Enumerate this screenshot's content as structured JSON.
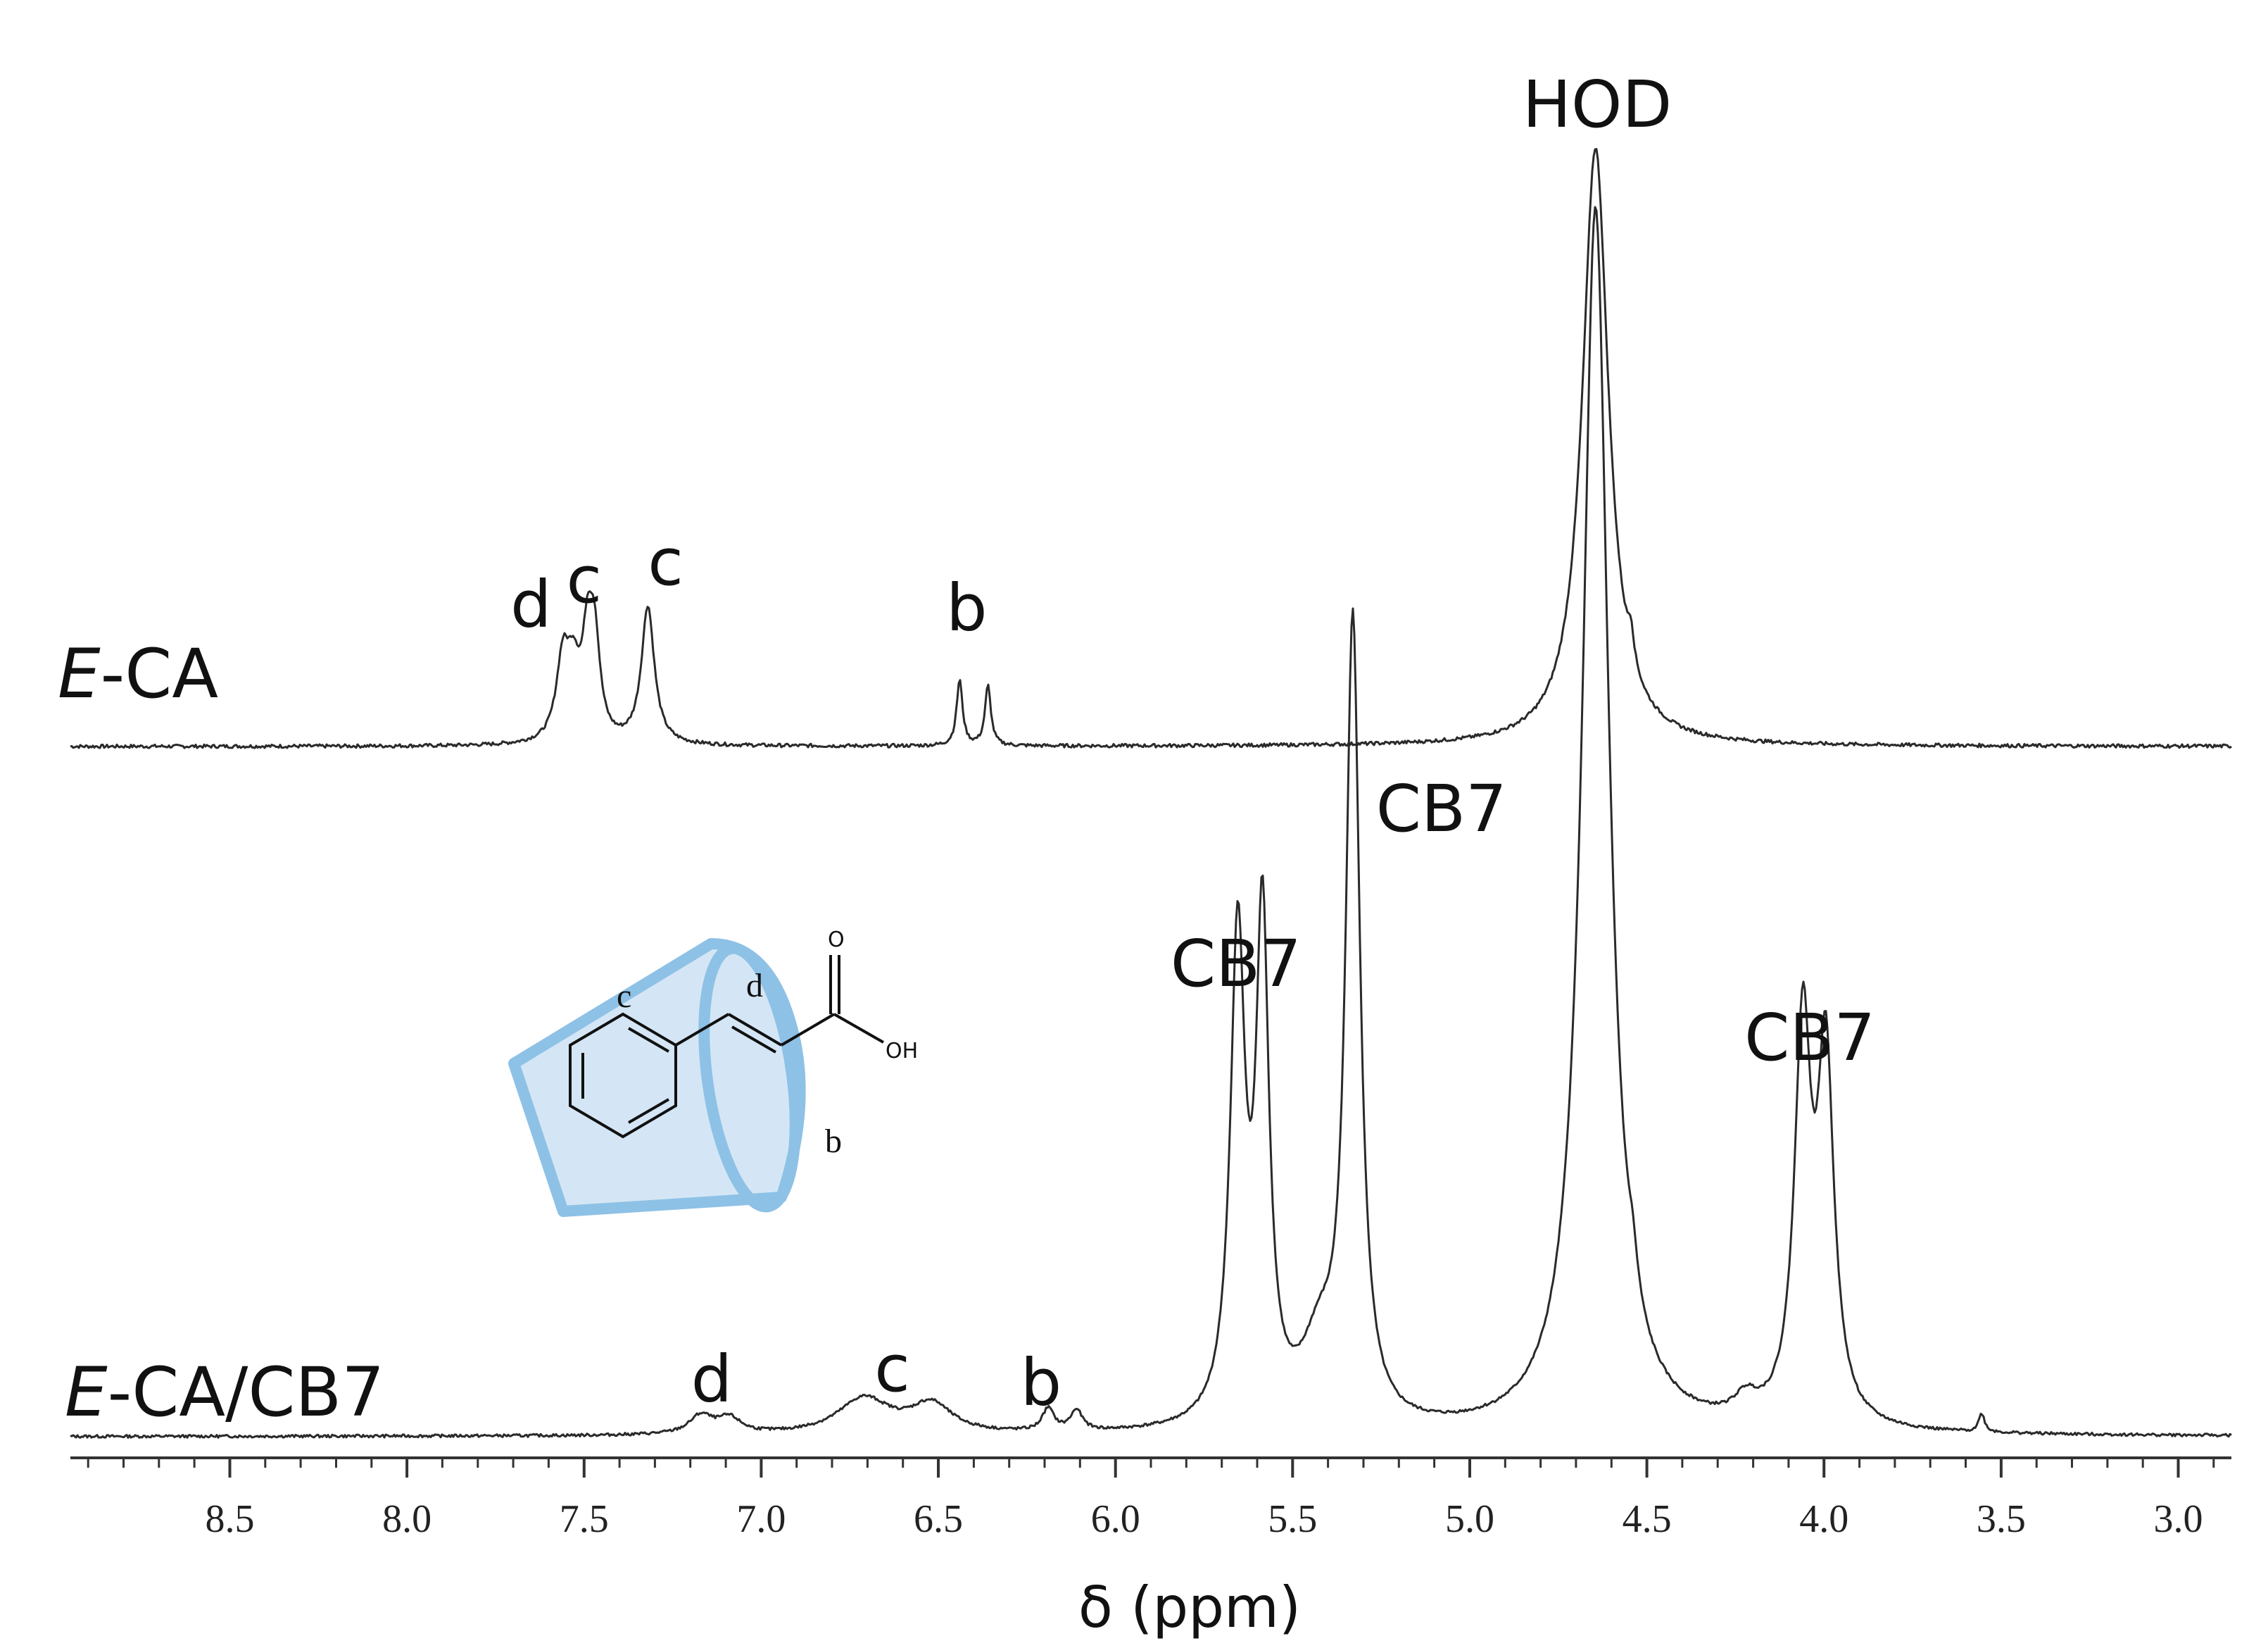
{
  "chart_data": {
    "type": "line",
    "title": "",
    "xlabel": "δ (ppm)",
    "ylabel": "",
    "x_reversed": true,
    "xlim": [
      8.95,
      2.85
    ],
    "grid": false,
    "legend": "none",
    "xticks": [
      8.5,
      8.0,
      7.5,
      7.0,
      6.5,
      6.0,
      5.5,
      5.0,
      4.5,
      4.0,
      3.5,
      3.0
    ],
    "tick_labels": [
      "8.5",
      "8.0",
      "7.5",
      "7.0",
      "6.5",
      "6.0",
      "5.5",
      "5.0",
      "4.5",
      "4.0",
      "3.5",
      "3.0"
    ],
    "series": [
      {
        "name": "E-CA",
        "name_prefix": "E",
        "name_suffix": "-CA",
        "peaks": [
          {
            "ppm": 7.56,
            "height": 0.13,
            "width": 0.022
          },
          {
            "ppm": 7.53,
            "height": 0.1,
            "width": 0.022
          },
          {
            "ppm": 7.49,
            "height": 0.15,
            "width": 0.018
          },
          {
            "ppm": 7.47,
            "height": 0.15,
            "width": 0.018
          },
          {
            "ppm": 7.32,
            "height": 0.23,
            "width": 0.022
          },
          {
            "ppm": 6.44,
            "height": 0.11,
            "width": 0.01
          },
          {
            "ppm": 6.36,
            "height": 0.1,
            "width": 0.01
          },
          {
            "ppm": 4.645,
            "height": 1.0,
            "width": 0.045
          },
          {
            "ppm": 4.545,
            "height": 0.05,
            "width": 0.01
          }
        ],
        "annotations": [
          {
            "text": "d",
            "ppm": 7.65
          },
          {
            "text": "c",
            "ppm": 7.5
          },
          {
            "text": "c",
            "ppm": 7.27
          },
          {
            "text": "b",
            "ppm": 6.42
          },
          {
            "text": "HOD",
            "ppm": 4.64
          }
        ]
      },
      {
        "name": "E-CA/CB7",
        "name_prefix": "E",
        "name_suffix": "-CA/CB7",
        "peaks": [
          {
            "ppm": 7.17,
            "height": 0.018,
            "width": 0.04
          },
          {
            "ppm": 7.09,
            "height": 0.015,
            "width": 0.04
          },
          {
            "ppm": 6.71,
            "height": 0.035,
            "width": 0.09
          },
          {
            "ppm": 6.52,
            "height": 0.028,
            "width": 0.07
          },
          {
            "ppm": 6.19,
            "height": 0.022,
            "width": 0.02
          },
          {
            "ppm": 6.11,
            "height": 0.02,
            "width": 0.02
          },
          {
            "ppm": 5.655,
            "height": 0.47,
            "width": 0.025
          },
          {
            "ppm": 5.585,
            "height": 0.48,
            "width": 0.022
          },
          {
            "ppm": 5.425,
            "height": 0.07,
            "width": 0.06
          },
          {
            "ppm": 5.33,
            "height": 0.78,
            "width": 0.024
          },
          {
            "ppm": 4.645,
            "height": 1.2,
            "width": 0.045
          },
          {
            "ppm": 4.54,
            "height": 0.03,
            "width": 0.015
          },
          {
            "ppm": 4.06,
            "height": 0.38,
            "width": 0.028
          },
          {
            "ppm": 3.995,
            "height": 0.35,
            "width": 0.028
          },
          {
            "ppm": 4.22,
            "height": 0.02,
            "width": 0.04
          },
          {
            "ppm": 3.555,
            "height": 0.018,
            "width": 0.01
          }
        ],
        "annotations": [
          {
            "text": "d",
            "ppm": 7.14
          },
          {
            "text": "c",
            "ppm": 6.63
          },
          {
            "text": "b",
            "ppm": 6.21
          },
          {
            "text": "CB7",
            "ppm": 5.66
          },
          {
            "text": "CB7",
            "ppm": 5.08
          },
          {
            "text": "CB7",
            "ppm": 4.04
          }
        ]
      }
    ]
  },
  "molecule": {
    "labels": {
      "c": "c",
      "d": "d",
      "b": "b",
      "o": "O",
      "oh": "OH"
    },
    "host_color": "#8ec1e6"
  }
}
